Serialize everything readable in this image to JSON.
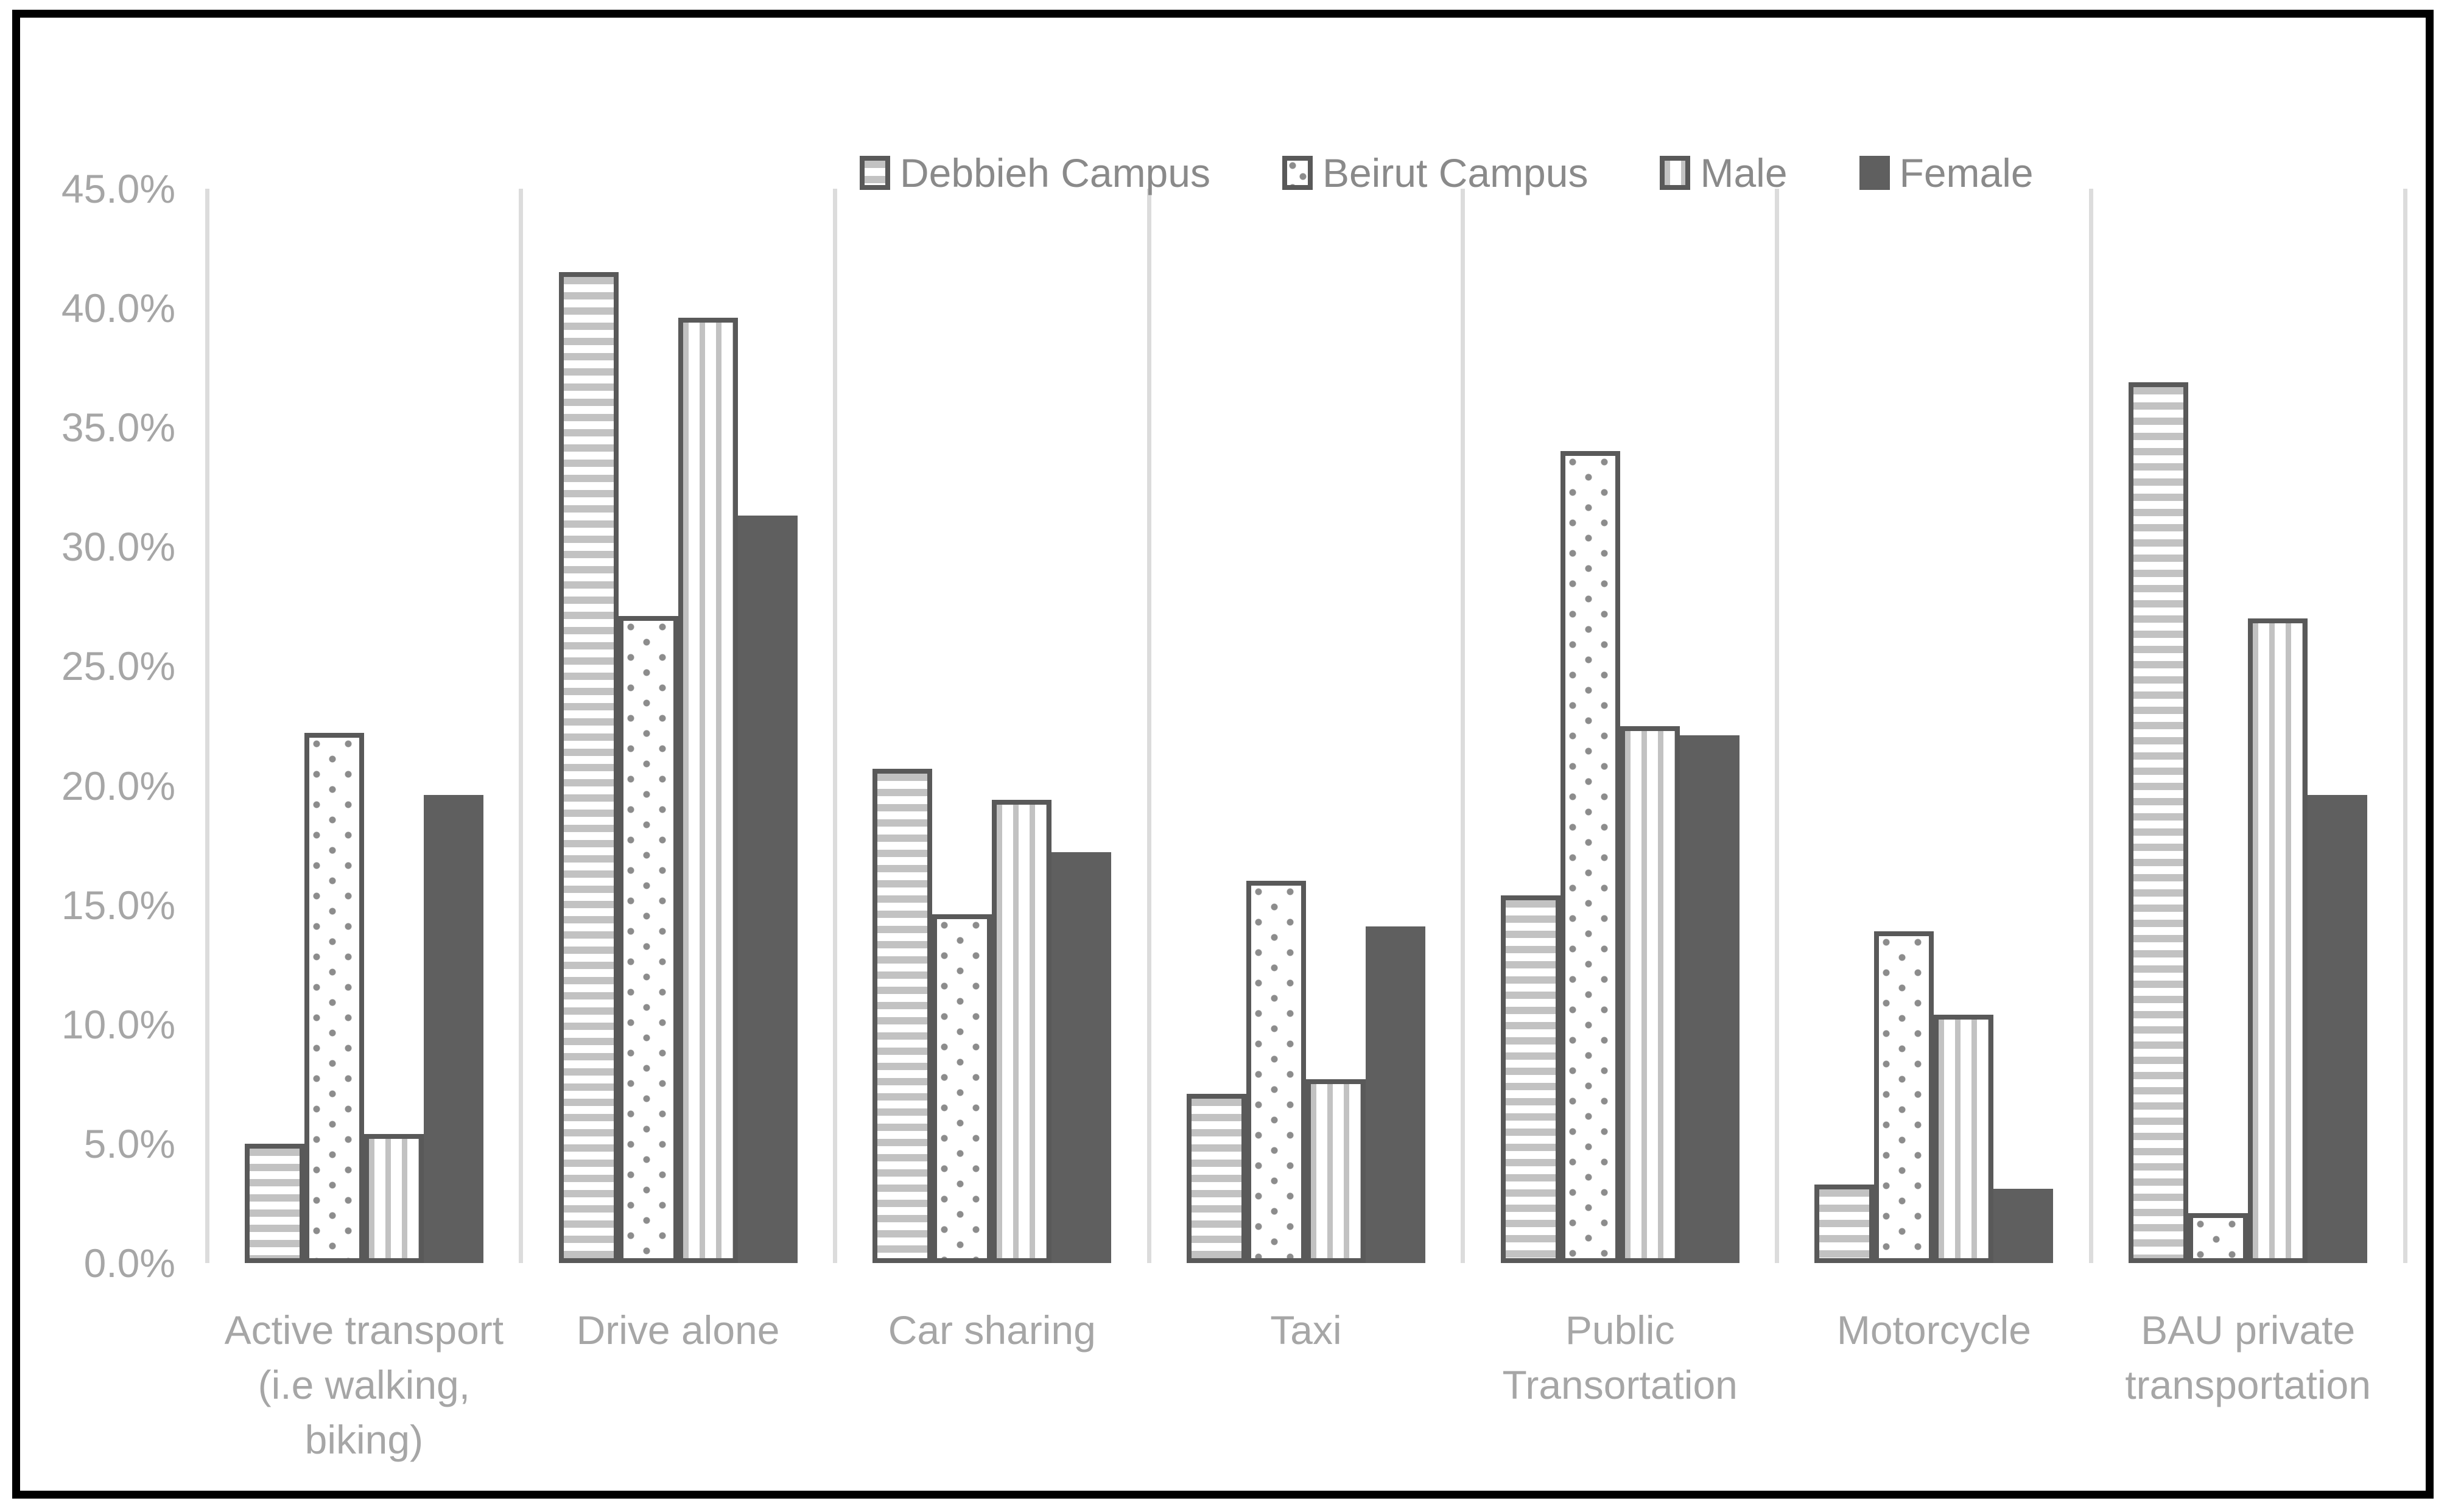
{
  "chart_data": {
    "type": "bar",
    "title": "",
    "xlabel": "",
    "ylabel": "",
    "ylim": [
      0,
      45
    ],
    "categories": [
      {
        "label": "Active transport (i.e walking, biking)",
        "lines": [
          "Active transport",
          "(i.e walking,",
          "biking)"
        ]
      },
      {
        "label": "Drive alone",
        "lines": [
          "Drive alone"
        ]
      },
      {
        "label": "Car sharing",
        "lines": [
          "Car sharing"
        ]
      },
      {
        "label": "Taxi",
        "lines": [
          "Taxi"
        ]
      },
      {
        "label": "Public Transortation",
        "lines": [
          "Public",
          "Transortation"
        ]
      },
      {
        "label": "Motorcycle",
        "lines": [
          "Motorcycle"
        ]
      },
      {
        "label": "BAU private transportation",
        "lines": [
          "BAU private",
          "transportation"
        ]
      }
    ],
    "series": [
      {
        "name": "Debbieh Campus",
        "pattern": "horizontal-stripes",
        "values": [
          5.0,
          41.5,
          20.7,
          7.1,
          15.4,
          3.3,
          36.9
        ],
        "labels": [
          "5.0%",
          "41.5%",
          "20.7%",
          "7.1%",
          "15.4%",
          "3.3%",
          "36.9%"
        ]
      },
      {
        "name": "Beirut Campus",
        "pattern": "dots",
        "values": [
          22.2,
          27.1,
          14.6,
          16.0,
          34.0,
          13.9,
          2.1
        ],
        "labels": [
          "22.2%",
          "27.1%",
          "14.6%",
          "16.0%",
          "34.0%",
          "13.9%",
          "2.1%"
        ]
      },
      {
        "name": "Male",
        "pattern": "vertical-stripes",
        "values": [
          5.4,
          39.6,
          19.4,
          7.7,
          22.5,
          10.4,
          27.0
        ],
        "labels": [
          "5.4%",
          "39.6%",
          "19.4%",
          "7.7%",
          "22.5%",
          "10.4%",
          "27.0%"
        ]
      },
      {
        "name": "Female",
        "pattern": "solid",
        "values": [
          19.6,
          31.3,
          17.2,
          14.1,
          22.1,
          3.1,
          19.6
        ],
        "labels": [
          "19.6%",
          "31.3%",
          "17.2%",
          "14.1%",
          "22.1%",
          "3.1%",
          "19.6%"
        ]
      }
    ],
    "y_axis": {
      "min": 0,
      "max": 45,
      "step": 5,
      "tick_labels": [
        "0.0%",
        "5.0%",
        "10.0%",
        "15.0%",
        "20.0%",
        "25.0%",
        "30.0%",
        "35.0%",
        "40.0%",
        "45.0%"
      ]
    },
    "legend": {
      "position": "top-center",
      "entries": [
        "Debbieh Campus",
        "Beirut Campus",
        "Male",
        "Female"
      ]
    },
    "grid": {
      "horizontal": false,
      "vertical_category_separators": true
    }
  },
  "colors": {
    "background": "#ffffff",
    "frame_border": "#000000",
    "axis_line": "#dcdcdc",
    "separator": "#dcdcdc",
    "bar_border": "#595959",
    "bar_fill_solid": "#5f5f5f",
    "stripe": "#c2c2c2",
    "dot": "#8c8c8c",
    "tick_label_text": "#a6a6a6",
    "category_label_text": "#a6a6a6",
    "data_label_text": "#7f7f7f",
    "legend_label_text": "#8a8a8a"
  }
}
